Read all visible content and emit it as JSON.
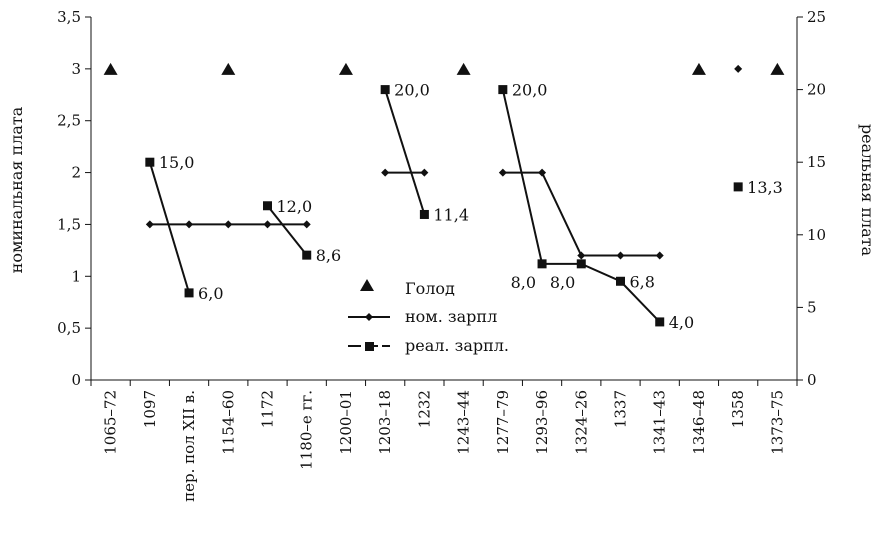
{
  "chart_data": {
    "type": "line",
    "categories": [
      "1065–72",
      "1097",
      "пер. пол XII в.",
      "1154–60",
      "1172",
      "1180–е гг.",
      "1200–01",
      "1203–18",
      "1232",
      "1243–44",
      "1277–79",
      "1293–96",
      "1324–26",
      "1337",
      "1341–43",
      "1346–48",
      "1358",
      "1373–75"
    ],
    "y_left": {
      "label": "номинальная плата",
      "min": 0,
      "max": 3.5,
      "ticks": [
        "0",
        "0,5",
        "1",
        "1,5",
        "2",
        "2,5",
        "3",
        "3,5"
      ]
    },
    "y_right": {
      "label": "реальная плата",
      "min": 0,
      "max": 25,
      "ticks": [
        "0",
        "5",
        "10",
        "15",
        "20",
        "25"
      ]
    },
    "legend": {
      "placement": "center",
      "entries": [
        "Голод",
        "ном. зарпл",
        "реал. зарпл."
      ]
    },
    "famine": {
      "name": "Голод",
      "axis": "left",
      "indices": [
        0,
        3,
        6,
        9,
        15,
        17
      ],
      "value": 3
    },
    "nominal": {
      "name": "ном. зарпл",
      "axis": "left",
      "segments": [
        {
          "indices": [
            1,
            2,
            3,
            4,
            5
          ],
          "values": [
            1.5,
            1.5,
            1.5,
            1.5,
            1.5
          ]
        },
        {
          "indices": [
            7,
            8
          ],
          "values": [
            2,
            2
          ]
        },
        {
          "indices": [
            10,
            11,
            12,
            13,
            14
          ],
          "values": [
            2,
            2,
            1.2,
            1.2,
            1.2
          ]
        },
        {
          "indices": [
            16
          ],
          "values": [
            3
          ]
        }
      ]
    },
    "real": {
      "name": "реал. зарпл.",
      "axis": "right",
      "segments": [
        {
          "indices": [
            1,
            2
          ],
          "values": [
            15.0,
            6.0
          ],
          "labels": [
            "15,0",
            "6,0"
          ]
        },
        {
          "indices": [
            4,
            5
          ],
          "values": [
            12.0,
            8.6
          ],
          "labels": [
            "12,0",
            "8,6"
          ]
        },
        {
          "indices": [
            7,
            8
          ],
          "values": [
            20.0,
            11.4
          ],
          "labels": [
            "20,0",
            "11,4"
          ]
        },
        {
          "indices": [
            10,
            11,
            12,
            13,
            14
          ],
          "values": [
            20.0,
            8.0,
            8.0,
            6.8,
            4.0
          ],
          "labels": [
            "20,0",
            "8,0",
            "8,0",
            "6,8",
            "4,0"
          ]
        },
        {
          "indices": [
            16
          ],
          "values": [
            13.3
          ],
          "labels": [
            "13,3"
          ]
        }
      ]
    }
  }
}
